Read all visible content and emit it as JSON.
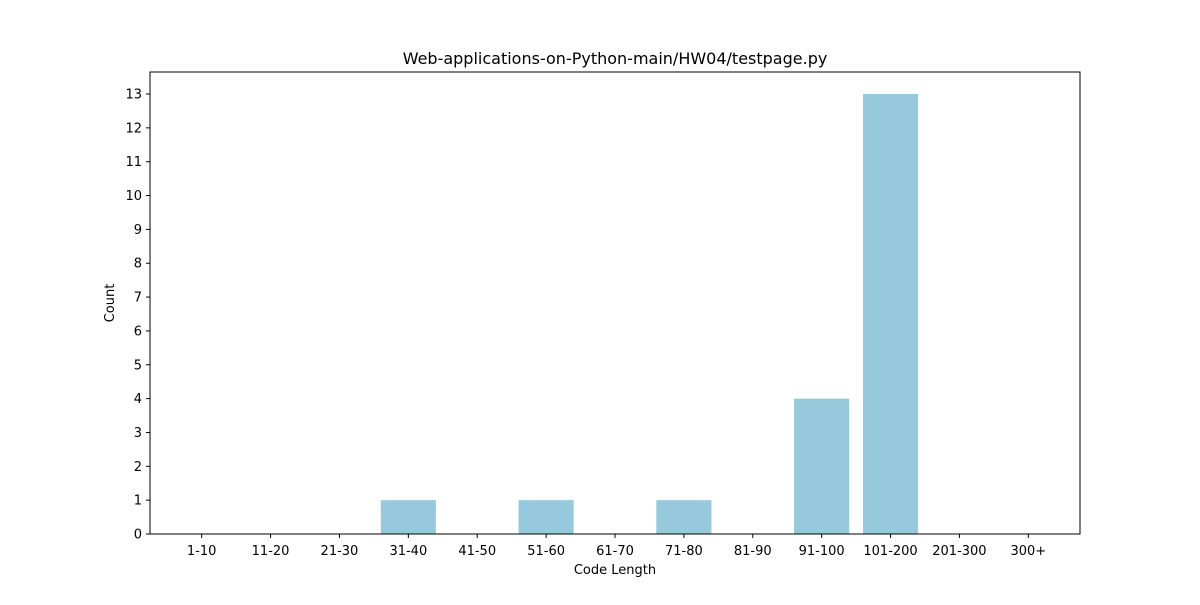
{
  "chart_data": {
    "type": "bar",
    "title": "Web-applications-on-Python-main/HW04/testpage.py",
    "xlabel": "Code Length",
    "ylabel": "Count",
    "categories": [
      "1-10",
      "11-20",
      "21-30",
      "31-40",
      "41-50",
      "51-60",
      "61-70",
      "71-80",
      "81-90",
      "91-100",
      "101-200",
      "201-300",
      "300+"
    ],
    "values": [
      0,
      0,
      0,
      1,
      0,
      1,
      0,
      1,
      0,
      4,
      13,
      0,
      0
    ],
    "ylim": [
      0,
      13.65
    ],
    "yticks": [
      "0",
      "1",
      "2",
      "3",
      "4",
      "5",
      "6",
      "7",
      "8",
      "9",
      "10",
      "11",
      "12",
      "13"
    ],
    "grid": false,
    "bar_color": "#96c9dc"
  }
}
